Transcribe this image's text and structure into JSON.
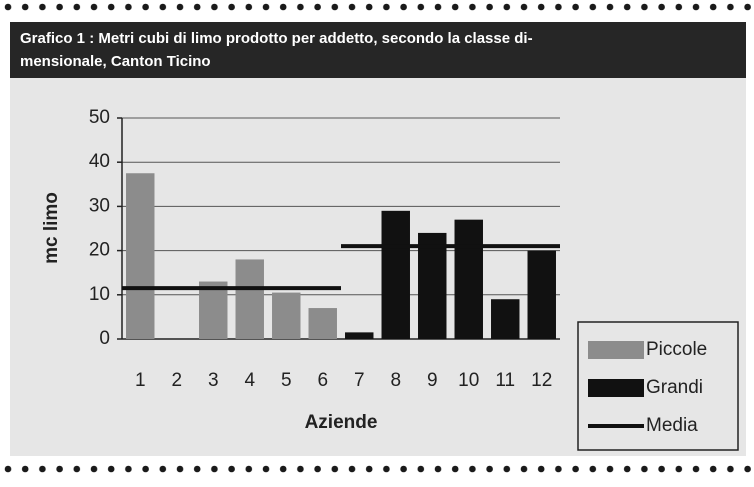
{
  "chart_data": {
    "type": "bar",
    "title": [
      "Grafico 1 :  Metri cubi di limo prodotto per addetto, secondo la classe  di-",
      "mensionale, Canton  Ticino"
    ],
    "xlabel": "Aziende",
    "ylabel": "mc limo",
    "categories": [
      "1",
      "2",
      "3",
      "4",
      "5",
      "6",
      "7",
      "8",
      "9",
      "10",
      "11",
      "12"
    ],
    "series": [
      {
        "name": "Piccole",
        "color": "#8c8c8c",
        "values": [
          37.5,
          0,
          13,
          18,
          10.5,
          7,
          null,
          null,
          null,
          null,
          null,
          null
        ]
      },
      {
        "name": "Grandi",
        "color": "#111111",
        "values": [
          null,
          null,
          null,
          null,
          null,
          null,
          1.5,
          29,
          24,
          27,
          9,
          20
        ]
      },
      {
        "name": "Media",
        "color": "#111111",
        "type": "line",
        "values": [
          11.5,
          11.5,
          11.5,
          11.5,
          11.5,
          11.5,
          21,
          21,
          21,
          21,
          21,
          21
        ]
      }
    ],
    "ylim": [
      0,
      50
    ],
    "yticks": [
      0,
      10,
      20,
      30,
      40,
      50
    ],
    "grid": true,
    "legend": "lower right"
  }
}
